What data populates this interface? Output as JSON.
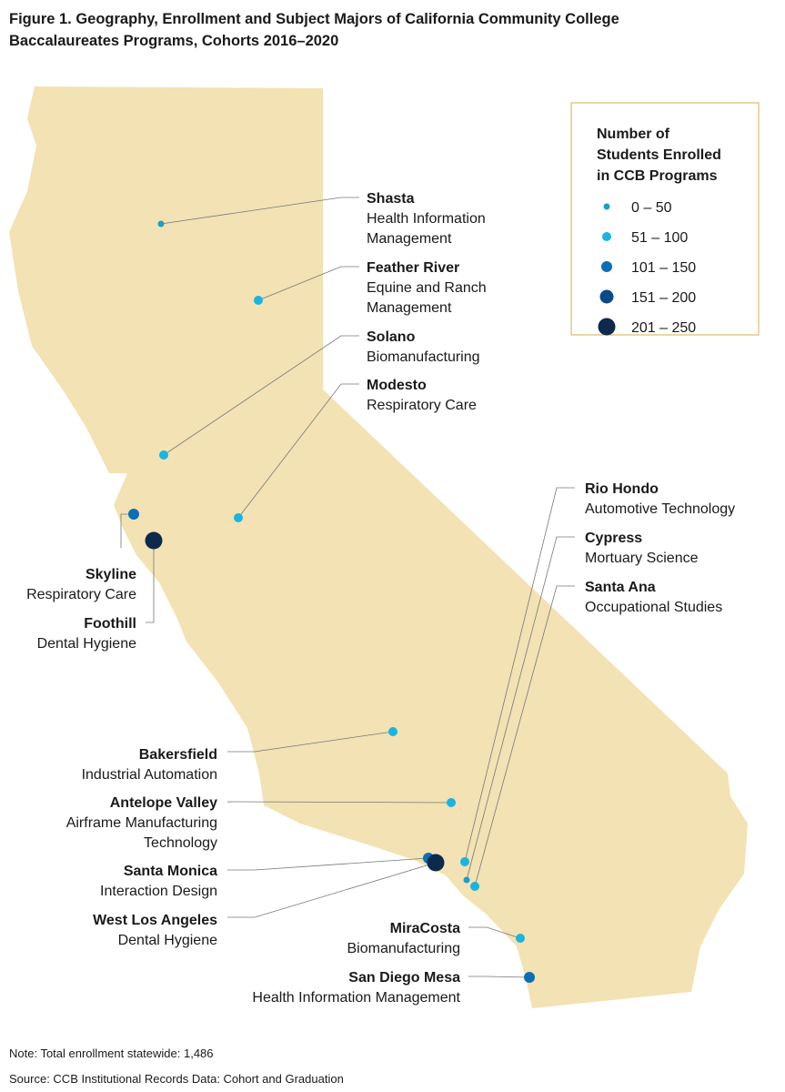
{
  "header": {
    "title": [
      "Figure 1. Geography, Enrollment and Subject Majors of California Community College",
      "Baccalaureates Programs, Cohorts 2016–2020"
    ]
  },
  "legend": {
    "title": [
      "Number of",
      "Students Enrolled",
      "in CCB Programs"
    ],
    "bins": [
      {
        "label": "0 – 50",
        "color": "#1a9fc9",
        "colleges": [
          {
            "name": "Shasta",
            "program": [
              "Health Information",
              "Management"
            ]
          },
          {
            "name": "Cypress",
            "program": [
              "Mortuary Science"
            ]
          }
        ]
      },
      {
        "label": "51 – 100",
        "color": "#1ab4e0",
        "colleges": [
          {
            "name": "Feather River",
            "program": [
              "Equine and Ranch",
              "Management"
            ]
          },
          {
            "name": "Solano",
            "program": [
              "Biomanufacturing"
            ]
          },
          {
            "name": "Modesto",
            "program": [
              "Respiratory Care"
            ]
          },
          {
            "name": "Bakersfield",
            "program": [
              "Industrial Automation"
            ]
          },
          {
            "name": "Antelope Valley",
            "program": [
              "Airframe Manufacturing",
              "Technology"
            ]
          },
          {
            "name": "Rio Hondo",
            "program": [
              "Automotive Technology"
            ]
          },
          {
            "name": "Santa Ana",
            "program": [
              "Occupational Studies"
            ]
          },
          {
            "name": "MiraCosta",
            "program": [
              "Biomanufacturing"
            ]
          }
        ]
      },
      {
        "label": "101 – 150",
        "color": "#0c6fb5",
        "colleges": [
          {
            "name": "Skyline",
            "program": [
              "Respiratory Care"
            ]
          },
          {
            "name": "Santa Monica",
            "program": [
              "Interaction Design"
            ]
          },
          {
            "name": "San Diego Mesa",
            "program": [
              "Health Information Management"
            ]
          }
        ]
      },
      {
        "label": "151 – 200",
        "color": "#0b4a86",
        "colleges": []
      },
      {
        "label": "201 – 250",
        "color": "#0d2a4d",
        "colleges": [
          {
            "name": "Foothill",
            "program": [
              "Dental Hygiene"
            ]
          },
          {
            "name": "West Los Angeles",
            "program": [
              "Dental Hygiene"
            ]
          }
        ]
      }
    ]
  },
  "footer": {
    "note": "Note: Total enrollment statewide: 1,486",
    "source": "Source: CCB Institutional Records Data: Cohort and Graduation"
  }
}
